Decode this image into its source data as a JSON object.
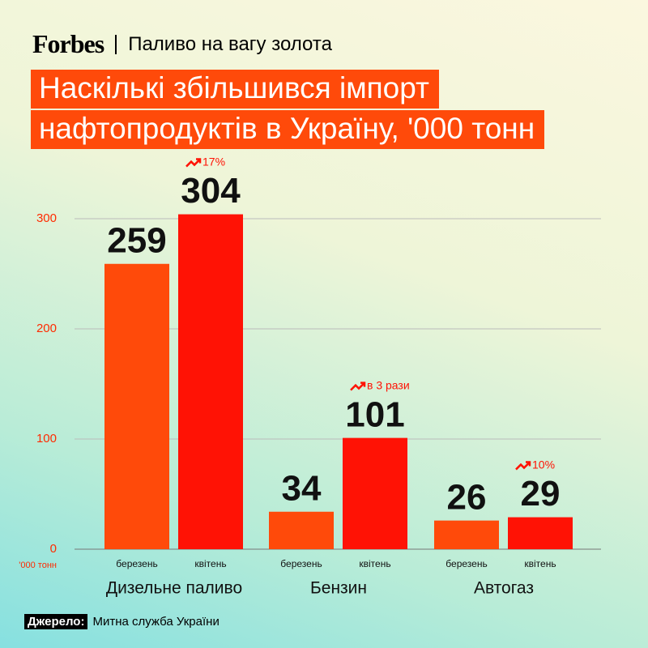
{
  "brand": "Forbes",
  "section": "Паливо на вагу золота",
  "chart_data": {
    "type": "bar",
    "title": [
      "Наскількі збільшився імпорт",
      "нафтопродуктів в Україну, '000 тонн"
    ],
    "y_unit_label": "'000 тонн",
    "categories": [
      "Дизельне паливо",
      "Бензин",
      "Автогаз"
    ],
    "series": [
      {
        "name": "березень",
        "color": "#ff4a0a",
        "values": [
          259,
          34,
          26
        ]
      },
      {
        "name": "квітень",
        "color": "#ff1205",
        "values": [
          304,
          101,
          29
        ]
      }
    ],
    "annotations": [
      "17%",
      "в 3 рази",
      "10%"
    ],
    "ylim": [
      0,
      300
    ],
    "yticks": [
      0,
      100,
      200,
      300
    ],
    "grid": true
  },
  "source": {
    "label": "Джерело:",
    "text": "Митна служба України"
  }
}
